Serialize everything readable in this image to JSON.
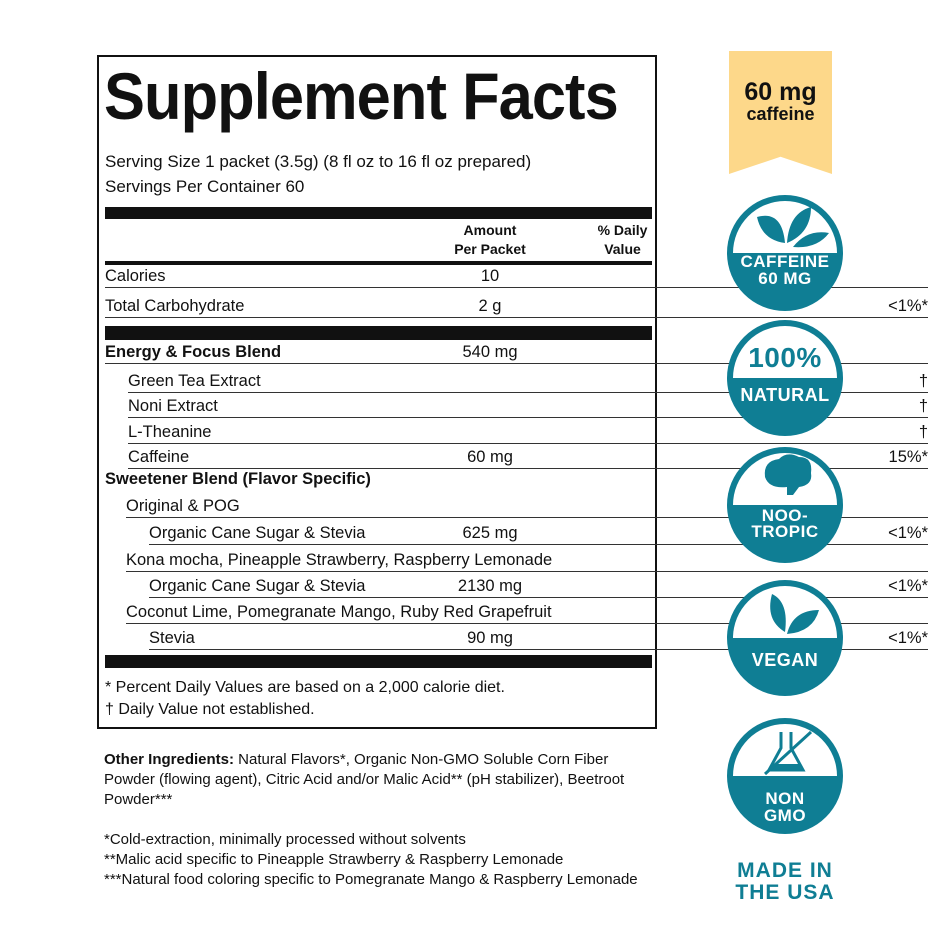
{
  "label": {
    "title": "Supplement Facts",
    "serving_size": "Serving Size 1 packet (3.5g) (8 fl oz to 16 fl oz prepared)",
    "servings": "Servings Per Container 60",
    "header_amount": [
      "Amount",
      "Per Packet"
    ],
    "header_dv": [
      "% Daily",
      "Value"
    ],
    "rows": [
      {
        "label": "Calories",
        "amount": "10",
        "dv": ""
      },
      {
        "label": "Total Carbohydrate",
        "amount": "2 g",
        "dv": "<1%*"
      },
      {
        "label": "Energy & Focus Blend",
        "amount": "540 mg",
        "dv": ""
      },
      {
        "label": "Green Tea Extract",
        "amount": "",
        "dv": "†"
      },
      {
        "label": "Noni Extract",
        "amount": "",
        "dv": "†"
      },
      {
        "label": "L-Theanine",
        "amount": "",
        "dv": "†"
      },
      {
        "label": "Caffeine",
        "amount": "60 mg",
        "dv": "15%*"
      },
      {
        "label": "Sweetener Blend (Flavor Specific)",
        "amount": "",
        "dv": ""
      },
      {
        "label": "Original & POG",
        "amount": "",
        "dv": ""
      },
      {
        "label": "Organic Cane Sugar & Stevia",
        "amount": "625 mg",
        "dv": "<1%*"
      },
      {
        "label": "Kona mocha, Pineapple Strawberry, Raspberry Lemonade",
        "amount": "",
        "dv": ""
      },
      {
        "label": "Organic Cane Sugar & Stevia",
        "amount": "2130 mg",
        "dv": "<1%*"
      },
      {
        "label": "Coconut Lime, Pomegranate Mango, Ruby Red Grapefruit",
        "amount": "",
        "dv": ""
      },
      {
        "label": "Stevia",
        "amount": "90 mg",
        "dv": "<1%*"
      }
    ],
    "footnotes": [
      "* Percent Daily Values are based on a 2,000 calorie diet.",
      "† Daily Value not established."
    ]
  },
  "other_ingredients": {
    "heading": "Other Ingredients:",
    "text": " Natural Flavors*, Organic Non-GMO Soluble Corn Fiber Powder (flowing agent), Citric Acid and/or Malic Acid** (pH stabilizer), Beetroot Powder***"
  },
  "notes": [
    "*Cold-extraction, minimally processed without solvents",
    "**Malic acid specific to Pineapple Strawberry & Raspberry Lemonade",
    "***Natural food coloring specific to Pomegranate Mango & Raspberry Lemonade"
  ],
  "ribbon": {
    "value": "60 mg",
    "label": "caffeine",
    "color": "#fdd88a"
  },
  "badges": [
    {
      "icon": "leaves-icon",
      "lines": [
        "CAFFEINE",
        "60 MG"
      ]
    },
    {
      "icon": "",
      "lines": [
        "100%",
        "NATURAL"
      ]
    },
    {
      "icon": "brain-icon",
      "lines": [
        "NOO-",
        "TROPIC"
      ]
    },
    {
      "icon": "leaves-icon",
      "lines": [
        "VEGAN"
      ]
    },
    {
      "icon": "crossed-flask-icon",
      "lines": [
        "NON",
        "GMO"
      ]
    }
  ],
  "made_in": [
    "MADE IN",
    "THE USA"
  ],
  "accent_color": "#0f7e94"
}
